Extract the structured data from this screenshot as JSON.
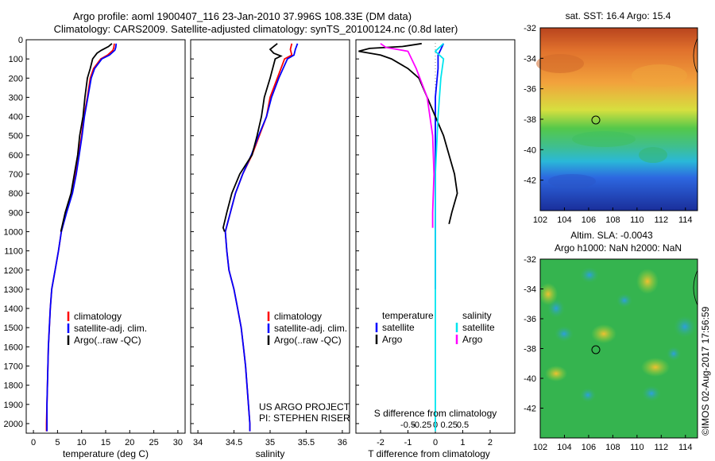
{
  "header": {
    "title_line1": "Argo profile: aoml 1900407_116 23-Jan-2010 37.996S 108.33E (DM data)",
    "title_line2": "Climatology: CARS2009. Satellite-adjusted climatology: synTS_20100124.nc (0.8d later)"
  },
  "credits": {
    "project": "US ARGO PROJECT",
    "pi": "PI: STEPHEN RISER"
  },
  "imos_stamp": "©IMOS 02-Aug-2017 17:56:59",
  "colors": {
    "climatology": "#ff0000",
    "satellite": "#0000ff",
    "argo": "#000000",
    "salinity_satellite": "#00e5ee",
    "salinity_argo": "#ff00ff"
  },
  "legends": {
    "temperature": [
      "climatology",
      "satellite-adj. clim.",
      "Argo(..raw -QC)"
    ],
    "salinity": [
      "climatology",
      "satellite-adj. clim.",
      "Argo(..raw -QC)"
    ],
    "difference": {
      "temperature_header": "temperature",
      "salinity_header": "salinity",
      "t_sat": "satellite",
      "t_argo": "Argo",
      "s_sat": "satellite",
      "s_argo": "Argo"
    }
  },
  "chart_data": [
    {
      "type": "line",
      "panel": "temperature",
      "xlabel": "temperature (deg C)",
      "xticks": [
        "0",
        "5",
        "10",
        "15",
        "20",
        "25",
        "30"
      ],
      "xlim": [
        -1.5,
        31.5
      ],
      "yticks": [
        "0",
        "100",
        "200",
        "300",
        "400",
        "500",
        "600",
        "700",
        "800",
        "900",
        "1000",
        "1100",
        "1200",
        "1300",
        "1400",
        "1500",
        "1600",
        "1700",
        "1800",
        "1900",
        "2000"
      ],
      "ylim": [
        0,
        2050
      ],
      "series": [
        {
          "name": "climatology",
          "points": [
            [
              16.8,
              20
            ],
            [
              16.7,
              40
            ],
            [
              16.5,
              55
            ],
            [
              15.4,
              80
            ],
            [
              14.0,
              100
            ],
            [
              12.5,
              150
            ],
            [
              11.8,
              200
            ],
            [
              11.2,
              300
            ],
            [
              10.5,
              400
            ],
            [
              10.0,
              500
            ],
            [
              9.4,
              600
            ],
            [
              8.8,
              700
            ],
            [
              8.0,
              800
            ],
            [
              6.8,
              900
            ],
            [
              5.8,
              1000
            ],
            [
              5.2,
              1100
            ],
            [
              4.5,
              1200
            ],
            [
              3.8,
              1300
            ],
            [
              3.5,
              1400
            ],
            [
              3.3,
              1500
            ],
            [
              3.1,
              1600
            ],
            [
              3.0,
              1700
            ],
            [
              2.9,
              1800
            ],
            [
              2.8,
              1900
            ],
            [
              2.7,
              2000
            ],
            [
              2.7,
              2040
            ]
          ]
        },
        {
          "name": "satellite-adj. clim.",
          "points": [
            [
              17.2,
              20
            ],
            [
              17.1,
              40
            ],
            [
              16.9,
              55
            ],
            [
              15.8,
              80
            ],
            [
              14.2,
              100
            ],
            [
              12.7,
              150
            ],
            [
              12.0,
              200
            ],
            [
              11.3,
              300
            ],
            [
              10.6,
              400
            ],
            [
              10.1,
              500
            ],
            [
              9.5,
              600
            ],
            [
              8.9,
              700
            ],
            [
              8.1,
              800
            ],
            [
              6.9,
              900
            ],
            [
              5.8,
              1000
            ],
            [
              5.2,
              1100
            ],
            [
              4.5,
              1200
            ],
            [
              3.8,
              1300
            ],
            [
              3.5,
              1400
            ],
            [
              3.3,
              1500
            ],
            [
              3.1,
              1600
            ],
            [
              3.0,
              1700
            ],
            [
              2.9,
              1800
            ],
            [
              2.8,
              1900
            ],
            [
              2.8,
              2000
            ],
            [
              2.8,
              2040
            ]
          ]
        },
        {
          "name": "Argo(..raw -QC)",
          "points": [
            [
              16.3,
              20
            ],
            [
              15.6,
              35
            ],
            [
              14.1,
              55
            ],
            [
              13.2,
              70
            ],
            [
              12.3,
              100
            ],
            [
              11.8,
              150
            ],
            [
              11.2,
              200
            ],
            [
              10.7,
              300
            ],
            [
              10.3,
              400
            ],
            [
              9.6,
              500
            ],
            [
              9.2,
              600
            ],
            [
              8.5,
              700
            ],
            [
              7.8,
              800
            ],
            [
              6.6,
              900
            ],
            [
              5.7,
              1000
            ]
          ]
        }
      ]
    },
    {
      "type": "line",
      "panel": "salinity",
      "xlabel": "salinity",
      "xticks": [
        "34",
        "34.5",
        "35",
        "35.5",
        "36"
      ],
      "xlim": [
        33.9,
        36.1
      ],
      "ylim": [
        0,
        2050
      ],
      "series": [
        {
          "name": "climatology",
          "points": [
            [
              35.3,
              20
            ],
            [
              35.28,
              50
            ],
            [
              35.3,
              80
            ],
            [
              35.2,
              100
            ],
            [
              35.1,
              200
            ],
            [
              35.0,
              300
            ],
            [
              34.95,
              400
            ],
            [
              34.85,
              500
            ],
            [
              34.75,
              600
            ],
            [
              34.62,
              700
            ],
            [
              34.52,
              800
            ],
            [
              34.45,
              900
            ],
            [
              34.38,
              1000
            ],
            [
              34.4,
              1100
            ],
            [
              34.43,
              1200
            ],
            [
              34.5,
              1300
            ],
            [
              34.55,
              1400
            ],
            [
              34.6,
              1500
            ],
            [
              34.63,
              1600
            ],
            [
              34.66,
              1700
            ],
            [
              34.68,
              1800
            ],
            [
              34.7,
              1900
            ],
            [
              34.72,
              2000
            ],
            [
              34.72,
              2040
            ]
          ]
        },
        {
          "name": "satellite-adj. clim.",
          "points": [
            [
              35.38,
              20
            ],
            [
              35.35,
              50
            ],
            [
              35.33,
              80
            ],
            [
              35.24,
              100
            ],
            [
              35.12,
              200
            ],
            [
              35.02,
              300
            ],
            [
              34.95,
              400
            ],
            [
              34.84,
              500
            ],
            [
              34.74,
              600
            ],
            [
              34.62,
              700
            ],
            [
              34.52,
              800
            ],
            [
              34.45,
              900
            ],
            [
              34.38,
              1000
            ],
            [
              34.4,
              1100
            ],
            [
              34.43,
              1200
            ],
            [
              34.5,
              1300
            ],
            [
              34.55,
              1400
            ],
            [
              34.6,
              1500
            ],
            [
              34.63,
              1600
            ],
            [
              34.66,
              1700
            ],
            [
              34.68,
              1800
            ],
            [
              34.7,
              1900
            ],
            [
              34.72,
              2000
            ],
            [
              34.72,
              2040
            ]
          ]
        },
        {
          "name": "Argo(..raw -QC)",
          "points": [
            [
              35.1,
              20
            ],
            [
              35.0,
              50
            ],
            [
              35.05,
              70
            ],
            [
              35.15,
              85
            ],
            [
              35.07,
              100
            ],
            [
              35.0,
              200
            ],
            [
              34.92,
              300
            ],
            [
              34.88,
              400
            ],
            [
              34.82,
              500
            ],
            [
              34.75,
              600
            ],
            [
              34.58,
              700
            ],
            [
              34.47,
              800
            ],
            [
              34.4,
              900
            ],
            [
              34.35,
              980
            ],
            [
              34.37,
              1000
            ]
          ]
        }
      ]
    },
    {
      "type": "line",
      "panel": "difference",
      "xlabel": "T difference from climatology",
      "x2label": "S difference from climatology",
      "xticks": [
        "-2",
        "-1",
        "0",
        "1",
        "2"
      ],
      "x2ticks": [
        "-0.5",
        "-0.25",
        "0",
        "0.25",
        "0.5"
      ],
      "xlim": [
        -2.9,
        2.9
      ],
      "ylim": [
        0,
        2050
      ],
      "series": [
        {
          "name": "T satellite",
          "points": [
            [
              0.3,
              20
            ],
            [
              0.2,
              50
            ],
            [
              0.1,
              80
            ],
            [
              0.1,
              150
            ],
            [
              0.0,
              300
            ],
            [
              0.0,
              500
            ],
            [
              0.0,
              700
            ],
            [
              0.0,
              1000
            ],
            [
              0.0,
              1300
            ]
          ]
        },
        {
          "name": "T Argo",
          "points": [
            [
              -0.5,
              20
            ],
            [
              -1.2,
              35
            ],
            [
              -2.4,
              45
            ],
            [
              -2.8,
              60
            ],
            [
              -2.0,
              80
            ],
            [
              -1.6,
              100
            ],
            [
              -1.0,
              150
            ],
            [
              -0.6,
              200
            ],
            [
              -0.3,
              300
            ],
            [
              0.0,
              400
            ],
            [
              0.3,
              500
            ],
            [
              0.5,
              600
            ],
            [
              0.7,
              700
            ],
            [
              0.8,
              800
            ],
            [
              0.6,
              900
            ],
            [
              0.5,
              960
            ]
          ]
        },
        {
          "name": "S satellite",
          "points": [
            [
              0.3,
              20
            ],
            [
              0.0,
              60
            ],
            [
              0.3,
              100
            ],
            [
              0.2,
              200
            ],
            [
              0.1,
              400
            ],
            [
              0.0,
              700
            ],
            [
              0.0,
              1000
            ],
            [
              0.0,
              1500
            ],
            [
              0.0,
              2040
            ]
          ]
        },
        {
          "name": "S Argo",
          "points": [
            [
              -2.0,
              20
            ],
            [
              -1.8,
              40
            ],
            [
              -1.0,
              60
            ],
            [
              -0.7,
              150
            ],
            [
              -0.3,
              300
            ],
            [
              -0.1,
              500
            ],
            [
              -0.05,
              700
            ],
            [
              -0.1,
              900
            ],
            [
              -0.1,
              980
            ]
          ]
        }
      ]
    },
    {
      "type": "heatmap",
      "panel": "sst_map",
      "title": "sat. SST: 16.4  Argo: 15.4",
      "xticks": [
        "102",
        "104",
        "106",
        "108",
        "110",
        "112",
        "114"
      ],
      "yticks": [
        "-32",
        "-34",
        "-36",
        "-38",
        "-40",
        "-42"
      ],
      "xlim": [
        102,
        115
      ],
      "ylim": [
        -44,
        -32
      ],
      "marker": {
        "lon": 108.33,
        "lat": -38.0
      }
    },
    {
      "type": "heatmap",
      "panel": "sla_map",
      "title_line1": "Altim. SLA: -0.0043",
      "title_line2": "Argo h1000: NaN h2000: NaN",
      "xticks": [
        "102",
        "104",
        "106",
        "108",
        "110",
        "112",
        "114"
      ],
      "yticks": [
        "-32",
        "-34",
        "-36",
        "-38",
        "-40",
        "-42"
      ],
      "xlim": [
        102,
        115
      ],
      "ylim": [
        -44,
        -32
      ],
      "marker": {
        "lon": 108.33,
        "lat": -38.0
      }
    }
  ]
}
